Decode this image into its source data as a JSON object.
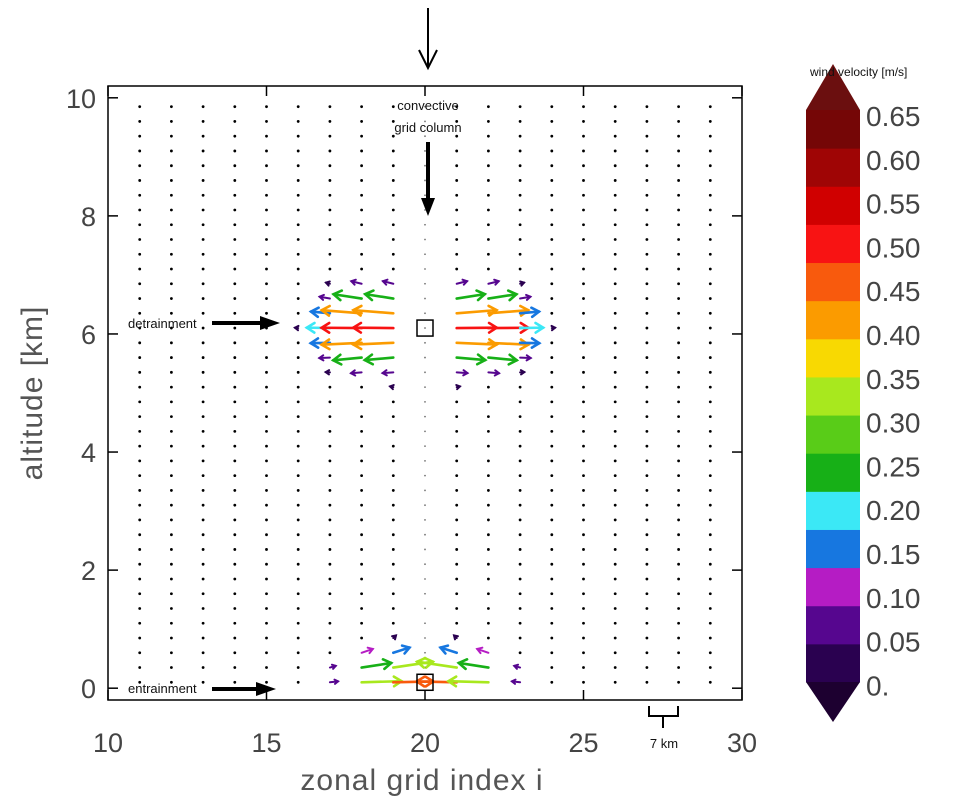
{
  "chart_data": {
    "type": "vector-field",
    "xlabel": "zonal grid index i",
    "ylabel": "altitude [km]",
    "xlim": [
      10,
      30
    ],
    "ylim": [
      -0.2,
      10.2
    ],
    "x_ticks": [
      "10",
      "15",
      "20",
      "25",
      "30"
    ],
    "y_ticks": [
      "0",
      "2",
      "4",
      "6",
      "8",
      "10"
    ],
    "grid": false,
    "field": {
      "grid_x_start": 11,
      "grid_x_end": 29,
      "grid_y_start": 0.1,
      "grid_y_step": 0.25,
      "convective_column_x": 20,
      "detrainment_altitude_km": 6.1,
      "entrainment_altitude_km": 0.1
    },
    "annotations": {
      "convective_column": [
        "convective",
        "grid column"
      ],
      "detrainment": "detrainment",
      "entrainment": "entrainment",
      "scale_bar": "7 km"
    },
    "colorbar": {
      "title": "wind velocity [m/s]",
      "tick_labels": [
        "0.65",
        "0.60",
        "0.55",
        "0.50",
        "0.45",
        "0.40",
        "0.35",
        "0.30",
        "0.25",
        "0.20",
        "0.15",
        "0.10",
        "0.05",
        "0."
      ],
      "levels": [
        0,
        0.05,
        0.1,
        0.15,
        0.2,
        0.25,
        0.3,
        0.35,
        0.4,
        0.45,
        0.5,
        0.55,
        0.6,
        0.65
      ],
      "colors": [
        "#2a0150",
        "#56068f",
        "#b51cc4",
        "#1777e0",
        "#3be8f6",
        "#17b017",
        "#59cc18",
        "#a8e81e",
        "#f8d902",
        "#fb9b00",
        "#f85a0d",
        "#f81313",
        "#d00000",
        "#9f0505",
        "#750606"
      ],
      "under_color": "#1d0030",
      "over_color": "#6b0f0f"
    }
  }
}
